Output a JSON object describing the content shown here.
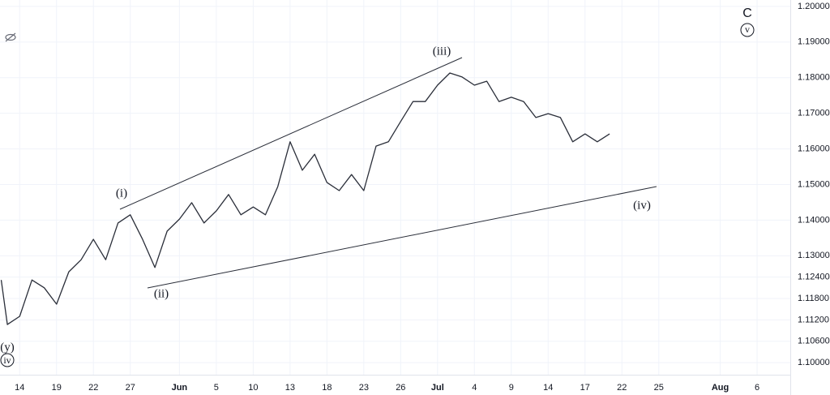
{
  "chart_data": {
    "type": "line",
    "x": [
      -1.5,
      -1,
      0,
      1,
      2,
      3,
      4,
      5,
      6,
      7,
      8,
      9,
      10,
      11,
      12,
      13,
      14,
      15,
      16,
      17,
      18,
      19,
      20,
      21,
      22,
      23,
      24,
      25,
      26,
      27,
      28,
      29,
      30,
      31,
      32,
      33,
      34,
      35,
      36,
      37,
      38,
      39,
      40,
      41,
      42,
      43,
      44,
      45,
      46,
      47,
      48
    ],
    "series": [
      {
        "color": "#2a2e39",
        "values": [
          1.1232,
          1.1107,
          1.113,
          1.1232,
          1.121,
          1.1164,
          1.1255,
          1.1289,
          1.1346,
          1.1289,
          1.1392,
          1.1415,
          1.1346,
          1.1267,
          1.1369,
          1.1403,
          1.1449,
          1.1392,
          1.1426,
          1.1472,
          1.1415,
          1.1437,
          1.1415,
          1.1494,
          1.162,
          1.154,
          1.1585,
          1.1506,
          1.1483,
          1.1528,
          1.1483,
          1.1608,
          1.162,
          1.1677,
          1.1733,
          1.1733,
          1.1779,
          1.1813,
          1.1802,
          1.1779,
          1.179,
          1.1733,
          1.1745,
          1.1733,
          1.1688,
          1.1699,
          1.1688,
          1.162,
          1.1642,
          1.162,
          1.1642
        ]
      }
    ],
    "xlim": [
      -1.6,
      62.7
    ],
    "xticks": [
      {
        "value": 0,
        "label": "14"
      },
      {
        "value": 3,
        "label": "19"
      },
      {
        "value": 6,
        "label": "22"
      },
      {
        "value": 9,
        "label": "27"
      },
      {
        "value": 13,
        "label": "Jun"
      },
      {
        "value": 16,
        "label": "5"
      },
      {
        "value": 19,
        "label": "10"
      },
      {
        "value": 22,
        "label": "13"
      },
      {
        "value": 25,
        "label": "18"
      },
      {
        "value": 28,
        "label": "23"
      },
      {
        "value": 31,
        "label": "26"
      },
      {
        "value": 34,
        "label": "Jul"
      },
      {
        "value": 37,
        "label": "4"
      },
      {
        "value": 40,
        "label": "9"
      },
      {
        "value": 43,
        "label": "14"
      },
      {
        "value": 46,
        "label": "17"
      },
      {
        "value": 49,
        "label": "22"
      },
      {
        "value": 52,
        "label": "25"
      },
      {
        "value": 57,
        "label": "Aug"
      },
      {
        "value": 60,
        "label": "6"
      }
    ],
    "ylim": [
      1.0966,
      1.2018
    ],
    "yticks": [
      {
        "value": 1.2,
        "label": "1.20000"
      },
      {
        "value": 1.19,
        "label": "1.19000"
      },
      {
        "value": 1.18,
        "label": "1.18000"
      },
      {
        "value": 1.17,
        "label": "1.17000"
      },
      {
        "value": 1.16,
        "label": "1.16000"
      },
      {
        "value": 1.15,
        "label": "1.15000"
      },
      {
        "value": 1.14,
        "label": "1.14000"
      },
      {
        "value": 1.13,
        "label": "1.13000"
      },
      {
        "value": 1.124,
        "label": "1.12400"
      },
      {
        "value": 1.118,
        "label": "1.11800"
      },
      {
        "value": 1.112,
        "label": "1.11200"
      },
      {
        "value": 1.106,
        "label": "1.10600"
      },
      {
        "value": 1.1,
        "label": "1.10000"
      }
    ],
    "grid": true,
    "annotations": [
      "(i)",
      "(ii)",
      "(iii)",
      "(iv)",
      "(y)",
      "iv",
      "v",
      "C"
    ]
  }
}
